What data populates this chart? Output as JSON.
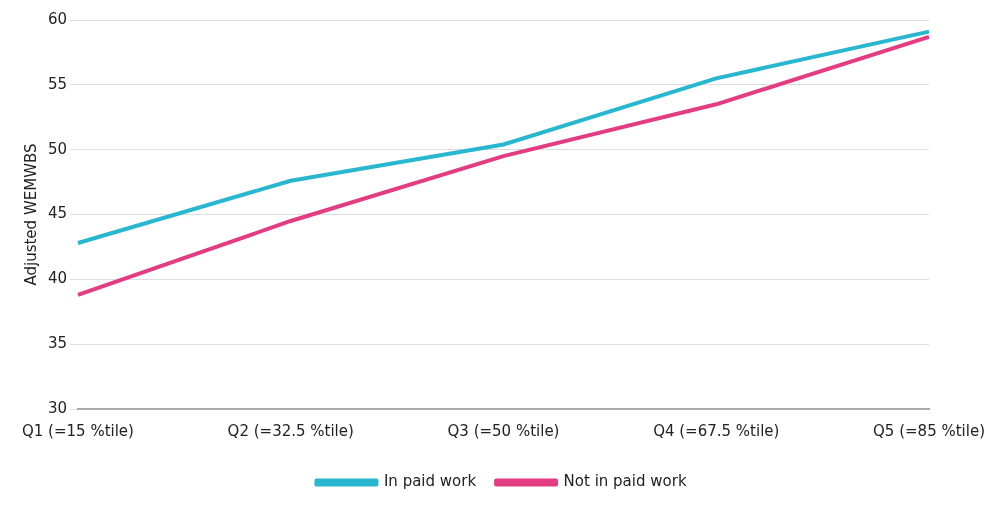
{
  "chart_data": {
    "type": "line",
    "ylabel": "Adjusted WEMWBS",
    "categories": [
      "Q1 (=15 %tile)",
      "Q2 (=32.5 %tile)",
      "Q3 (=50 %tile)",
      "Q4 (=67.5 %tile)",
      "Q5 (=85 %tile)"
    ],
    "series": [
      {
        "name": "In paid work",
        "color": "#29b6cf",
        "values": [
          42.8,
          47.6,
          50.4,
          55.5,
          59.1
        ]
      },
      {
        "name": "Not in paid work",
        "color": "#e23c82",
        "values": [
          38.8,
          44.5,
          49.5,
          53.5,
          58.7
        ]
      }
    ],
    "ylim": [
      30,
      60
    ],
    "yticks": [
      30,
      35,
      40,
      45,
      50,
      55,
      60
    ],
    "grid": "y",
    "legend": "bottom"
  }
}
